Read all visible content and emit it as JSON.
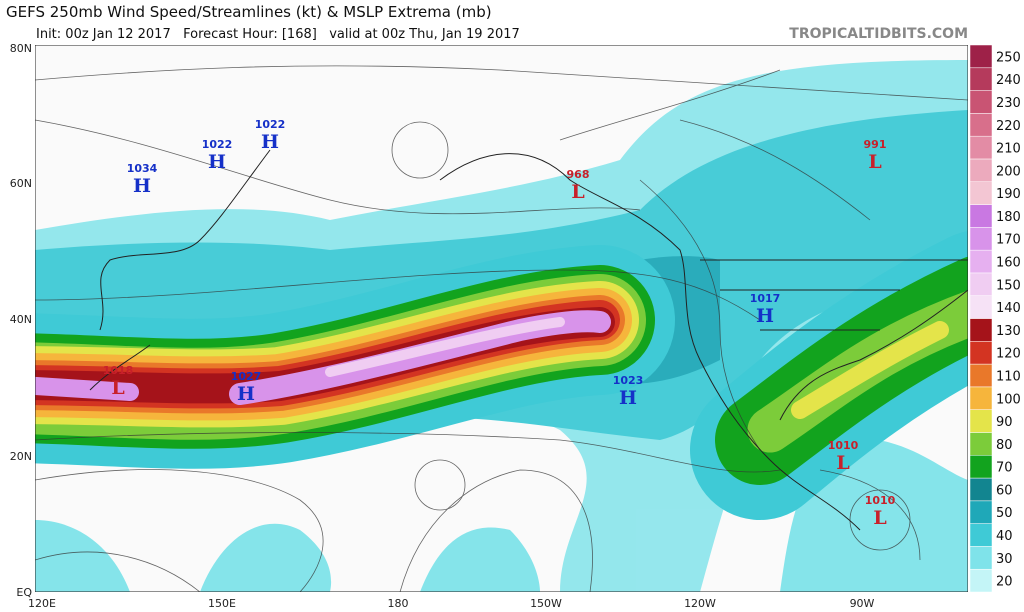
{
  "header": {
    "title": "GEFS 250mb Wind Speed/Streamlines (kt) & MSLP Extrema (mb)",
    "subtitle": "Init: 00z Jan 12 2017   Forecast Hour: [168]   valid at 00z Thu, Jan 19 2017",
    "brand": "TROPICALTIDBITS.COM"
  },
  "latitude_labels": [
    "80N",
    "60N",
    "40N",
    "20N",
    "EQ"
  ],
  "longitude_labels": [
    "120E",
    "150E",
    "180",
    "150W",
    "120W",
    "90W"
  ],
  "colorbar": {
    "levels": [
      20,
      30,
      40,
      50,
      60,
      70,
      80,
      90,
      100,
      110,
      120,
      130,
      140,
      150,
      160,
      170,
      180,
      190,
      200,
      210,
      220,
      230,
      240,
      250
    ],
    "colors": [
      "#c4f5f7",
      "#7fe3ea",
      "#3fcad6",
      "#1fa8b8",
      "#128590",
      "#12a31e",
      "#7ccc3a",
      "#e4e44a",
      "#f6b53c",
      "#e9782a",
      "#d33422",
      "#a5131a",
      "#f6e2f6",
      "#f0cdf2",
      "#e6b0f0",
      "#d893ea",
      "#c978e2",
      "#f3c6d3",
      "#ecaabd",
      "#e38ca5",
      "#d86f8b",
      "#c95473",
      "#b53a5c",
      "#9e2148"
    ]
  },
  "pressure_centers": [
    {
      "value": "1034",
      "letter": "H"
    },
    {
      "value": "1022",
      "letter": "H"
    },
    {
      "value": "1022",
      "letter": "H"
    },
    {
      "value": "968",
      "letter": "L"
    },
    {
      "value": "991",
      "letter": "L"
    },
    {
      "value": "1017",
      "letter": "H"
    },
    {
      "value": "1018",
      "letter": "L"
    },
    {
      "value": "1027",
      "letter": "H"
    },
    {
      "value": "1023",
      "letter": "H"
    },
    {
      "value": "1010",
      "letter": "L"
    },
    {
      "value": "1010",
      "letter": "L"
    }
  ]
}
